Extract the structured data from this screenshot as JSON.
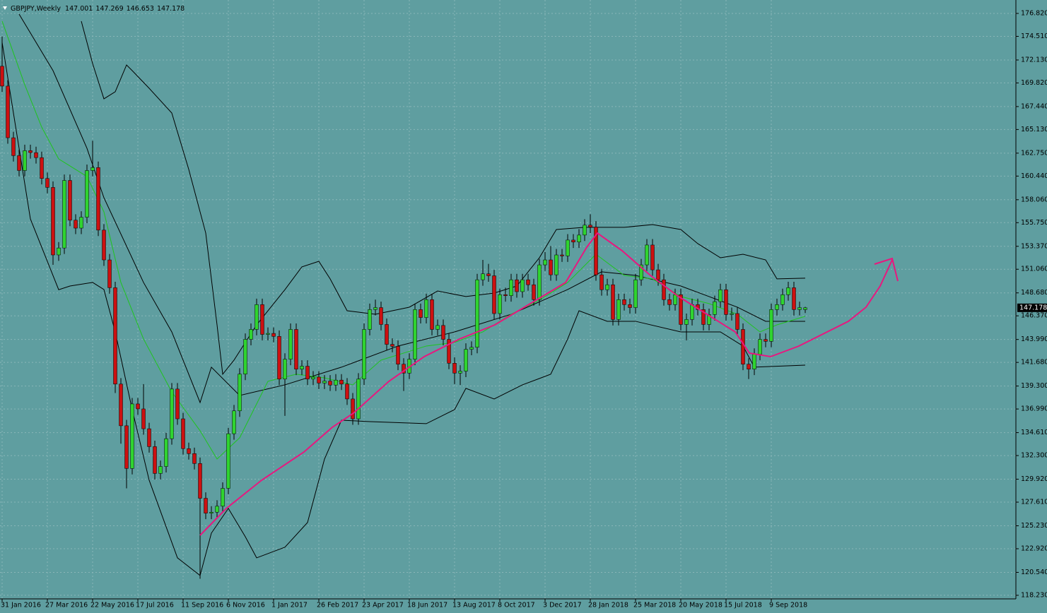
{
  "chart_data": {
    "type": "candlestick",
    "title": "GBPJPY,Weekly",
    "header_values": [
      147.001,
      147.269,
      146.653,
      147.178
    ],
    "last_price": 147.178,
    "background": "#5f9ea0",
    "candle_colors": {
      "up": "#2fd42f",
      "down": "#cc1010",
      "wick": "#000000"
    },
    "grid": true,
    "ylim": [
      117.87,
      178.17
    ],
    "yticks": [
      {
        "value": 176.82,
        "label": "176.820"
      },
      {
        "value": 174.51,
        "label": "174.510"
      },
      {
        "value": 172.13,
        "label": "172.130"
      },
      {
        "value": 169.82,
        "label": "169.820"
      },
      {
        "value": 167.44,
        "label": "167.440"
      },
      {
        "value": 165.13,
        "label": "165.130"
      },
      {
        "value": 162.75,
        "label": "162.750"
      },
      {
        "value": 160.44,
        "label": "160.440"
      },
      {
        "value": 158.06,
        "label": "158.060"
      },
      {
        "value": 155.75,
        "label": "155.750"
      },
      {
        "value": 153.37,
        "label": "153.370"
      },
      {
        "value": 151.06,
        "label": "151.060"
      },
      {
        "value": 148.68,
        "label": "148.680"
      },
      {
        "value": 146.37,
        "label": "146.370"
      },
      {
        "value": 143.99,
        "label": "143.990"
      },
      {
        "value": 141.68,
        "label": "141.680"
      },
      {
        "value": 139.3,
        "label": "139.300"
      },
      {
        "value": 136.99,
        "label": "136.990"
      },
      {
        "value": 134.61,
        "label": "134.610"
      },
      {
        "value": 132.3,
        "label": "132.300"
      },
      {
        "value": 129.92,
        "label": "129.920"
      },
      {
        "value": 127.61,
        "label": "127.610"
      },
      {
        "value": 125.23,
        "label": "125.230"
      },
      {
        "value": 122.92,
        "label": "122.920"
      },
      {
        "value": 120.54,
        "label": "120.540"
      },
      {
        "value": 118.23,
        "label": "118.230"
      }
    ],
    "categories": [
      "31 Jan 2016",
      null,
      null,
      null,
      null,
      null,
      null,
      null,
      "27 Mar 2016",
      null,
      null,
      null,
      null,
      null,
      null,
      null,
      "22 May 2016",
      null,
      null,
      null,
      null,
      null,
      null,
      null,
      "17 Jul 2016",
      null,
      null,
      null,
      null,
      null,
      null,
      null,
      "11 Sep 2016",
      null,
      null,
      null,
      null,
      null,
      null,
      null,
      "6 Nov 2016",
      null,
      null,
      null,
      null,
      null,
      null,
      null,
      "1 Jan 2017",
      null,
      null,
      null,
      null,
      null,
      null,
      null,
      "26 Feb 2017",
      null,
      null,
      null,
      null,
      null,
      null,
      null,
      "23 Apr 2017",
      null,
      null,
      null,
      null,
      null,
      null,
      null,
      "18 Jun 2017",
      null,
      null,
      null,
      null,
      null,
      null,
      null,
      "13 Aug 2017",
      null,
      null,
      null,
      null,
      null,
      null,
      null,
      "8 Oct 2017",
      null,
      null,
      null,
      null,
      null,
      null,
      null,
      "3 Dec 2017",
      null,
      null,
      null,
      null,
      null,
      null,
      null,
      "28 Jan 2018",
      null,
      null,
      null,
      null,
      null,
      null,
      null,
      "25 Mar 2018",
      null,
      null,
      null,
      null,
      null,
      null,
      null,
      "20 May 2018",
      null,
      null,
      null,
      null,
      null,
      null,
      null,
      "15 Jul 2018",
      null,
      null,
      null,
      null,
      null,
      null,
      null,
      "9 Sep 2018",
      null,
      null,
      null,
      null,
      null,
      null
    ],
    "open": [
      171.5,
      169.5,
      164.3,
      162.5,
      161.0,
      163.0,
      162.8,
      162.3,
      160.2,
      159.3,
      152.5,
      153.2,
      160.0,
      156.0,
      155.2,
      156.3,
      161.0,
      161.3,
      155.0,
      152.0,
      149.2,
      139.5,
      135.3,
      131.0,
      137.5,
      137.0,
      135.0,
      133.2,
      130.5,
      131.2,
      134.0,
      139.0,
      136.0,
      133.0,
      132.5,
      131.5,
      128.0,
      126.5,
      126.6,
      127.2,
      129.0,
      134.5,
      136.8,
      140.5,
      144.0,
      145.0,
      147.5,
      144.5,
      144.6,
      144.3,
      140.0,
      142.0,
      145.0,
      141.0,
      141.3,
      140.0,
      140.2,
      139.6,
      139.8,
      139.4,
      139.9,
      139.5,
      138.0,
      136.0,
      140.0,
      145.0,
      147.0,
      147.2,
      145.5,
      143.5,
      143.3,
      141.5,
      140.6,
      142.0,
      147.0,
      146.2,
      148.0,
      145.0,
      145.4,
      144.0,
      141.6,
      140.6,
      140.8,
      143.0,
      143.2,
      150.0,
      150.6,
      150.4,
      146.6,
      148.5,
      148.4,
      150.0,
      148.8,
      150.0,
      149.5,
      148.0,
      151.5,
      152.0,
      150.5,
      152.5,
      152.4,
      154.0,
      153.8,
      154.5,
      155.5,
      155.3,
      150.5,
      149.0,
      149.5,
      146.0,
      148.0,
      147.5,
      147.2,
      150.0,
      151.5,
      153.5,
      151.0,
      150.0,
      148.0,
      147.5,
      148.5,
      145.5,
      146.0,
      147.5,
      147.0,
      145.5,
      146.5,
      147.8,
      149.0,
      146.5,
      146.6,
      145.0,
      141.5,
      141.0,
      142.5,
      144.0,
      143.8,
      147.0,
      147.5,
      148.5,
      149.2,
      147.0,
      147.001
    ],
    "high": [
      174.5,
      170.1,
      164.9,
      163.1,
      163.6,
      163.6,
      163.4,
      162.9,
      160.8,
      159.9,
      153.8,
      160.6,
      160.6,
      156.6,
      156.9,
      161.6,
      164.0,
      161.9,
      155.6,
      152.6,
      149.8,
      140.1,
      135.9,
      138.1,
      138.1,
      139.5,
      135.6,
      133.8,
      131.8,
      134.6,
      139.6,
      139.6,
      136.6,
      133.6,
      133.1,
      132.1,
      128.6,
      127.2,
      127.8,
      129.6,
      135.1,
      137.4,
      141.1,
      144.6,
      145.6,
      148.1,
      148.1,
      145.2,
      145.2,
      144.9,
      142.6,
      145.6,
      145.6,
      141.9,
      141.9,
      140.8,
      140.8,
      140.4,
      140.4,
      140.5,
      140.5,
      140.1,
      138.6,
      140.6,
      145.6,
      147.6,
      148.0,
      147.8,
      146.1,
      144.1,
      143.9,
      142.1,
      142.6,
      147.6,
      147.6,
      148.6,
      148.6,
      146.0,
      146.0,
      144.6,
      142.2,
      141.4,
      143.6,
      143.8,
      150.6,
      152.0,
      151.6,
      151.0,
      149.1,
      149.2,
      150.6,
      150.6,
      150.6,
      150.6,
      150.1,
      152.1,
      152.8,
      153.4,
      153.1,
      153.1,
      154.6,
      154.6,
      155.1,
      156.1,
      156.6,
      155.9,
      151.1,
      150.1,
      150.1,
      148.6,
      148.6,
      148.1,
      150.6,
      152.1,
      154.1,
      154.1,
      151.6,
      150.6,
      148.6,
      149.1,
      149.1,
      146.6,
      148.1,
      148.1,
      147.6,
      147.1,
      148.4,
      149.6,
      149.6,
      147.2,
      147.2,
      145.6,
      142.1,
      143.1,
      144.6,
      144.6,
      147.6,
      148.1,
      149.1,
      149.8,
      149.8,
      147.8,
      147.269
    ],
    "low": [
      168.9,
      163.7,
      161.9,
      160.4,
      160.4,
      162.2,
      161.7,
      159.6,
      158.7,
      151.5,
      151.9,
      152.6,
      155.4,
      154.6,
      154.6,
      155.7,
      160.4,
      154.4,
      151.4,
      148.6,
      138.6,
      133.5,
      129.0,
      130.4,
      136.4,
      134.4,
      132.6,
      129.9,
      129.9,
      130.6,
      133.4,
      135.4,
      132.4,
      131.9,
      130.9,
      119.9,
      125.9,
      125.9,
      126.0,
      126.6,
      128.4,
      133.9,
      136.2,
      139.9,
      143.4,
      144.4,
      143.9,
      143.9,
      143.7,
      139.4,
      136.3,
      141.4,
      140.4,
      140.4,
      139.4,
      139.4,
      139.0,
      139.0,
      138.8,
      138.8,
      138.9,
      137.4,
      135.4,
      135.4,
      139.4,
      144.4,
      146.4,
      144.9,
      142.9,
      142.7,
      140.9,
      138.8,
      140.0,
      141.4,
      145.6,
      145.6,
      144.4,
      144.4,
      143.4,
      141.0,
      139.5,
      139.4,
      140.2,
      142.4,
      142.6,
      149.4,
      149.8,
      146.0,
      146.0,
      147.8,
      147.8,
      148.2,
      148.2,
      148.9,
      147.4,
      147.4,
      150.9,
      149.9,
      149.9,
      151.8,
      151.8,
      153.2,
      153.2,
      153.9,
      154.7,
      149.9,
      148.4,
      148.4,
      145.4,
      145.4,
      146.9,
      146.6,
      146.6,
      149.4,
      150.9,
      150.4,
      149.4,
      147.4,
      146.9,
      146.9,
      144.9,
      143.9,
      145.4,
      146.4,
      144.9,
      144.9,
      145.9,
      147.2,
      145.9,
      145.9,
      144.4,
      140.9,
      140.0,
      140.4,
      141.9,
      143.2,
      143.2,
      146.4,
      146.9,
      147.9,
      146.4,
      146.4,
      146.653
    ],
    "close": [
      169.5,
      164.3,
      162.5,
      161.0,
      163.0,
      162.8,
      162.3,
      160.2,
      159.3,
      152.5,
      153.2,
      160.0,
      156.0,
      155.2,
      156.3,
      161.0,
      161.3,
      155.0,
      152.0,
      149.2,
      139.5,
      135.3,
      131.0,
      137.5,
      137.0,
      135.0,
      133.2,
      130.5,
      131.2,
      134.0,
      139.0,
      136.0,
      133.0,
      132.5,
      131.5,
      128.0,
      126.5,
      126.6,
      127.2,
      129.0,
      134.5,
      136.8,
      140.5,
      144.0,
      145.0,
      147.5,
      144.5,
      144.6,
      144.3,
      140.0,
      142.0,
      145.0,
      141.0,
      141.3,
      140.0,
      140.2,
      139.6,
      139.8,
      139.4,
      139.9,
      139.5,
      138.0,
      136.0,
      140.0,
      145.0,
      147.0,
      147.2,
      145.5,
      143.5,
      143.3,
      141.5,
      140.6,
      142.0,
      147.0,
      146.2,
      148.0,
      145.0,
      145.4,
      144.0,
      141.6,
      140.6,
      140.8,
      143.0,
      143.2,
      150.0,
      150.6,
      150.4,
      146.6,
      148.5,
      148.4,
      150.0,
      148.8,
      150.0,
      149.5,
      148.0,
      151.5,
      152.0,
      150.5,
      152.5,
      152.4,
      154.0,
      153.8,
      154.5,
      155.5,
      155.3,
      150.5,
      149.0,
      149.5,
      146.0,
      148.0,
      147.5,
      147.2,
      150.0,
      151.5,
      153.5,
      151.0,
      150.0,
      148.0,
      147.5,
      148.5,
      145.5,
      146.0,
      147.5,
      147.0,
      145.5,
      146.5,
      147.8,
      149.0,
      146.5,
      146.6,
      145.0,
      141.5,
      141.0,
      142.5,
      144.0,
      143.8,
      147.0,
      147.5,
      148.5,
      149.2,
      147.0,
      147.2,
      147.178
    ],
    "lines": [
      {
        "color": "#000000",
        "x": [
          14,
          16,
          18,
          20,
          22,
          23,
          26,
          30,
          33,
          36,
          38,
          39,
          41,
          45,
          50,
          53,
          56,
          58,
          61,
          66,
          72,
          77,
          82,
          87,
          91,
          95,
          98,
          103,
          110,
          115,
          120,
          123,
          127,
          131,
          135,
          137,
          142
        ],
        "values": [
          176.04,
          171.77,
          168.22,
          168.93,
          171.63,
          171.06,
          169.28,
          166.79,
          161.11,
          154.71,
          145.46,
          140.49,
          141.91,
          145.46,
          149.0,
          151.3,
          151.86,
          150.09,
          146.88,
          146.53,
          147.24,
          148.87,
          148.31,
          148.66,
          149.37,
          152.22,
          155.06,
          155.28,
          155.28,
          155.56,
          155.06,
          153.64,
          152.22,
          152.57,
          152.0,
          150.09,
          150.16
        ]
      },
      {
        "color": "#000000",
        "x": [
          0,
          5,
          10,
          12,
          16,
          18,
          20,
          23,
          26,
          31,
          35,
          37,
          40,
          43,
          45,
          50,
          54,
          57,
          60,
          65,
          75,
          80,
          82,
          87,
          92,
          97,
          100,
          102,
          107,
          112,
          120,
          127,
          131,
          133,
          142
        ],
        "values": [
          173.9,
          156.13,
          149.0,
          149.37,
          149.73,
          149.02,
          144.75,
          136.93,
          129.82,
          122.0,
          120.22,
          124.49,
          126.98,
          124.13,
          122.0,
          123.07,
          125.56,
          131.95,
          135.86,
          135.72,
          135.51,
          136.93,
          139.07,
          138.0,
          139.42,
          140.49,
          144.04,
          146.88,
          145.82,
          145.82,
          144.75,
          144.75,
          143.33,
          141.2,
          141.41
        ]
      },
      {
        "color": "#000000",
        "x": [
          3,
          9,
          15,
          18,
          25,
          30,
          35,
          37,
          42,
          50,
          60,
          70,
          80,
          90,
          100,
          106,
          112,
          120,
          125,
          130,
          135,
          142
        ],
        "values": [
          176.75,
          171.06,
          163.24,
          158.26,
          149.73,
          144.75,
          137.64,
          141.2,
          138.35,
          139.42,
          141.2,
          143.33,
          144.75,
          146.53,
          149.02,
          150.8,
          150.44,
          149.37,
          148.31,
          147.24,
          145.82,
          145.82
        ]
      },
      {
        "color": "#1fc41f",
        "x": [
          0,
          4,
          7,
          10,
          15,
          18,
          21,
          25,
          30,
          35,
          38,
          42,
          47,
          52,
          57,
          62,
          67,
          75,
          80,
          85,
          90,
          95,
          100,
          105,
          110,
          115,
          120,
          125,
          130,
          134,
          137,
          142
        ],
        "values": [
          176.04,
          169.64,
          165.37,
          162.17,
          160.4,
          156.84,
          149.73,
          144.04,
          138.71,
          134.8,
          131.95,
          134.09,
          139.78,
          140.49,
          140.13,
          139.42,
          141.91,
          143.33,
          143.69,
          144.75,
          146.53,
          147.95,
          149.73,
          152.57,
          150.44,
          150.09,
          148.31,
          147.6,
          146.53,
          144.75,
          145.46,
          146.32
        ]
      }
    ]
  }
}
